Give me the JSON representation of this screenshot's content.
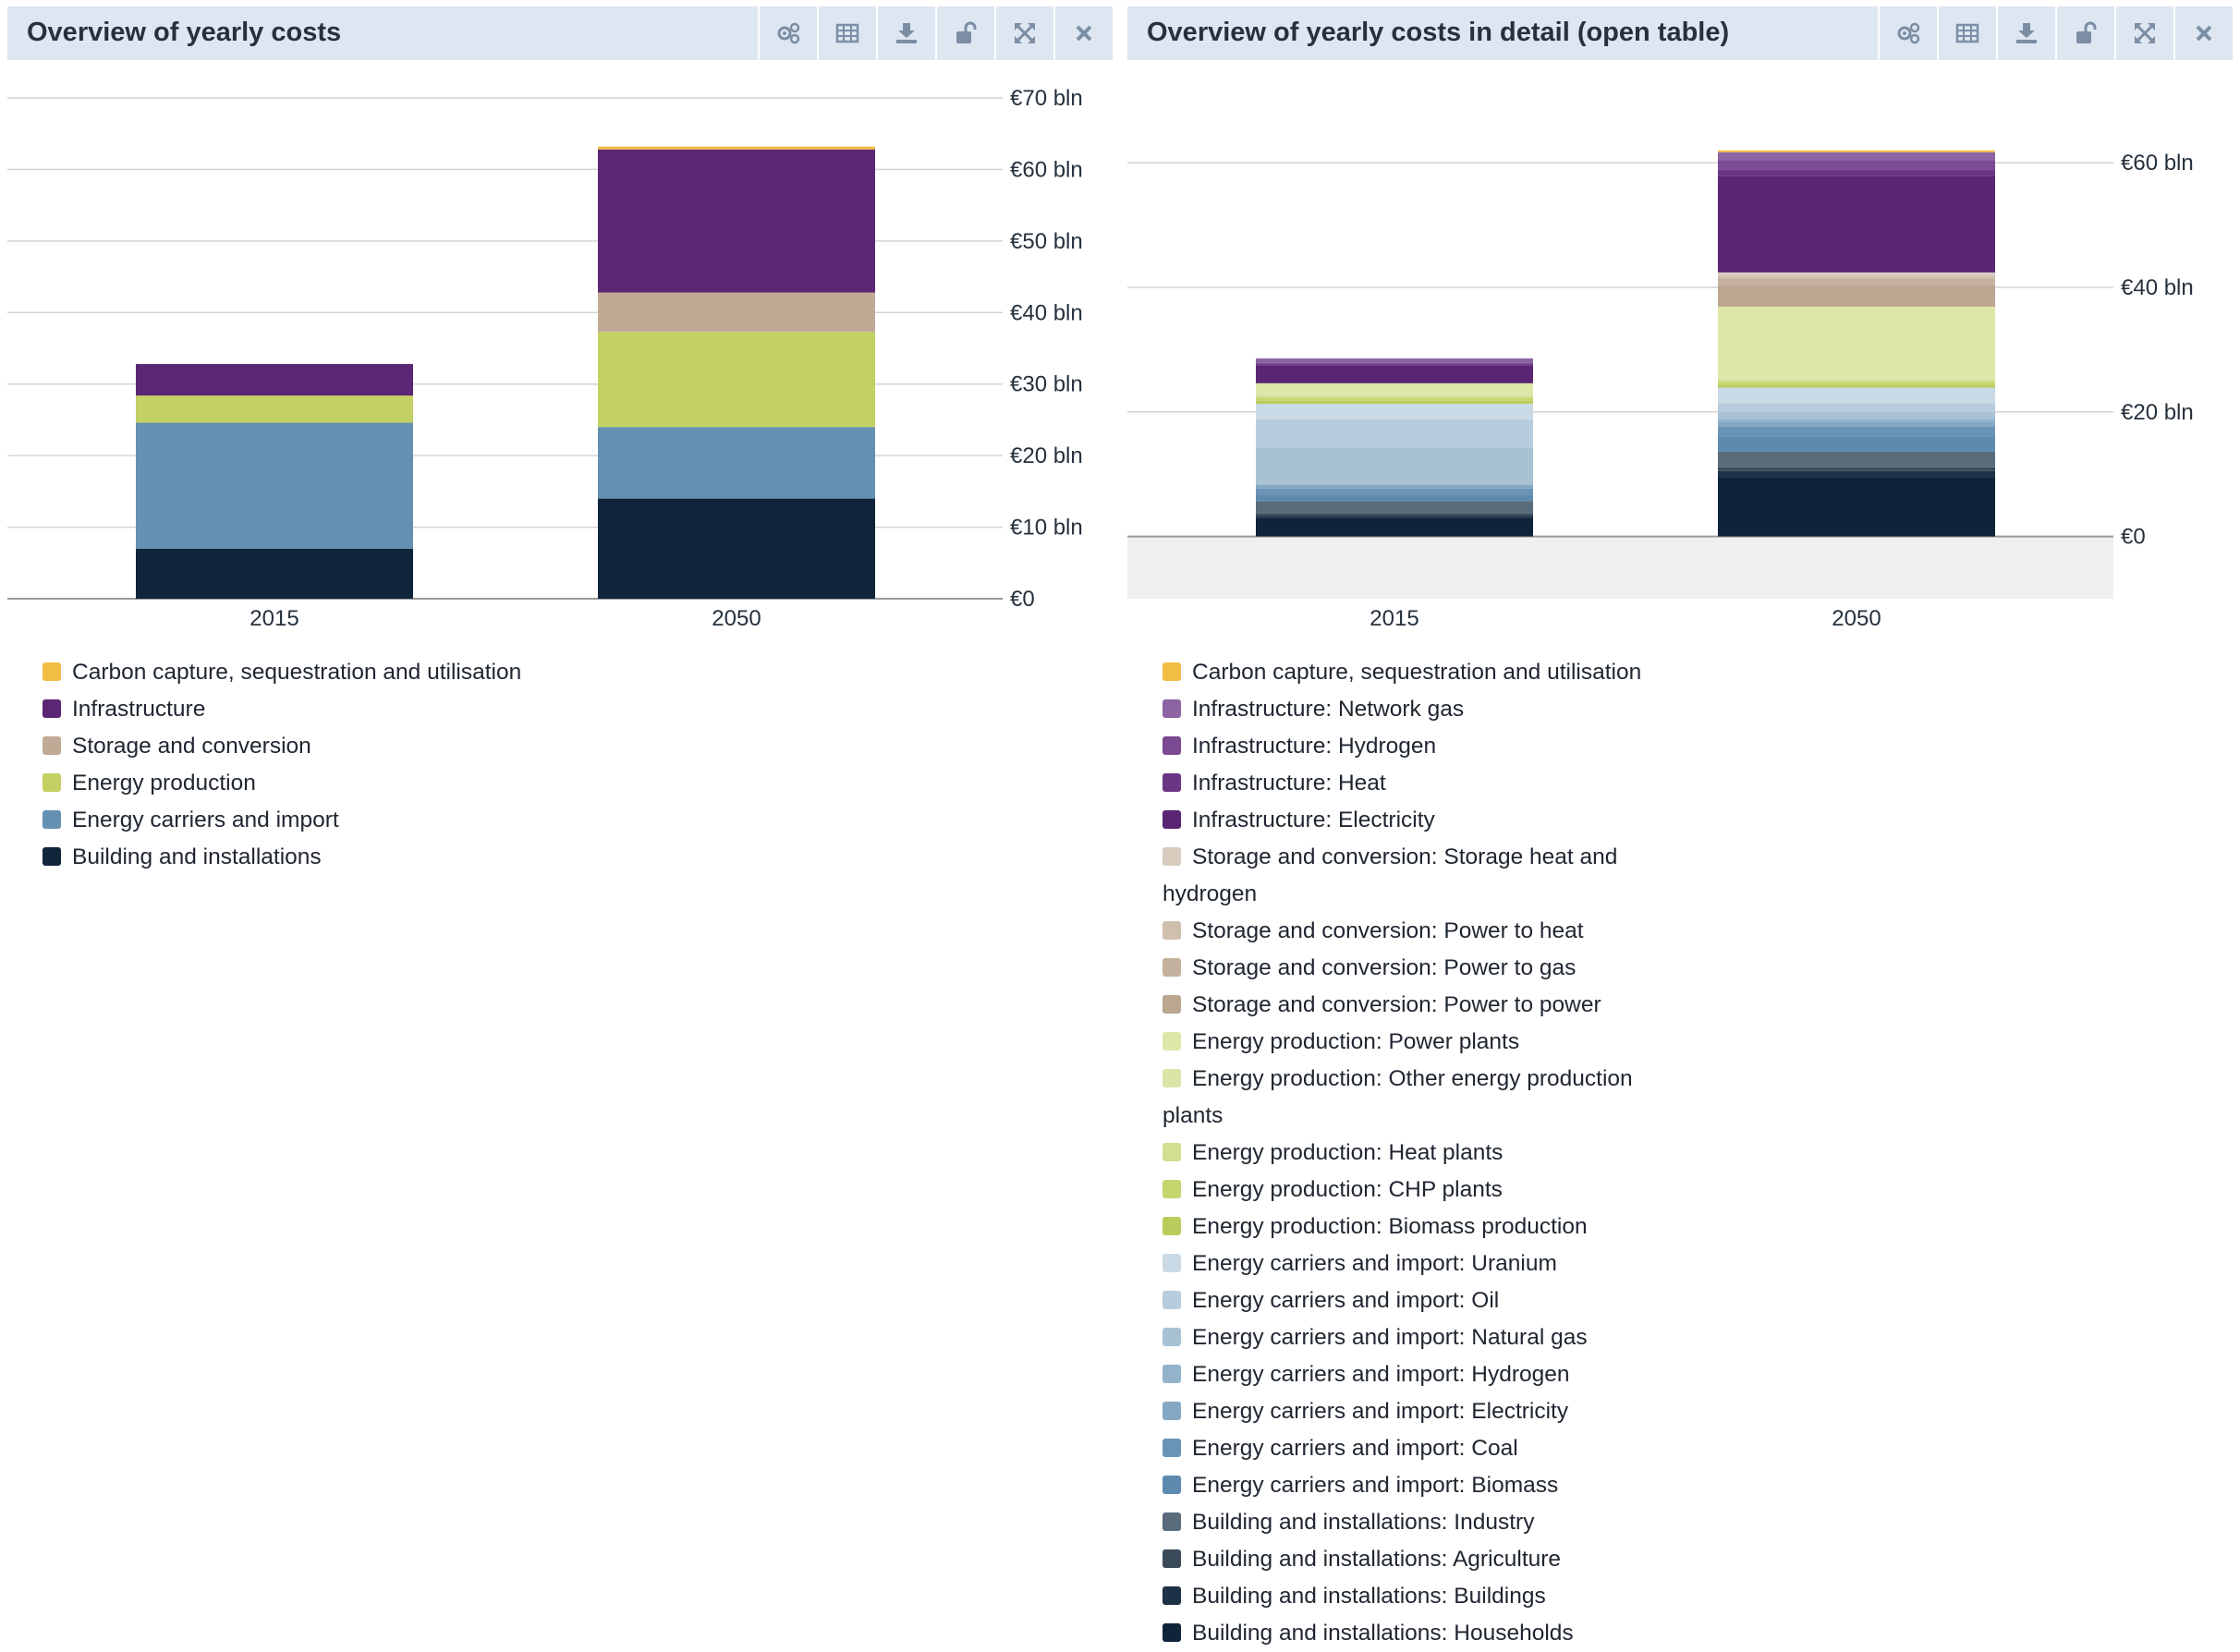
{
  "panels": {
    "left": {
      "title": "Overview of yearly costs"
    },
    "right": {
      "title": "Overview of yearly costs in detail (open table)"
    }
  },
  "toolbar_icons": [
    "settings-gears-icon",
    "table-icon",
    "download-icon",
    "unlock-icon",
    "fullscreen-icon",
    "close-icon"
  ],
  "chart_data": [
    {
      "type": "bar",
      "stacked": true,
      "title": "Overview of yearly costs",
      "categories": [
        "2015",
        "2050"
      ],
      "y_unit": "€ bln",
      "ylim": [
        0,
        70
      ],
      "y_ticks": [
        0,
        10,
        20,
        30,
        40,
        50,
        60,
        70
      ],
      "y_tick_labels": [
        "€0",
        "€10 bln",
        "€20 bln",
        "€30 bln",
        "€40 bln",
        "€50 bln",
        "€60 bln",
        "€70 bln"
      ],
      "y_axis_position": "right",
      "grid": true,
      "legend_position": "bottom",
      "series": [
        {
          "name": "Building and installations",
          "color": "#10243a",
          "values": [
            7,
            14
          ]
        },
        {
          "name": "Energy carriers and import",
          "color": "#6490b1",
          "values": [
            17.6,
            10
          ]
        },
        {
          "name": "Energy production",
          "color": "#c3d062",
          "values": [
            3.8,
            13.3
          ]
        },
        {
          "name": "Storage and conversion",
          "color": "#bfab95",
          "values": [
            0,
            5.5
          ]
        },
        {
          "name": "Infrastructure",
          "color": "#5b2674",
          "values": [
            4.4,
            20
          ]
        },
        {
          "name": "Carbon capture, sequestration and utilisation",
          "color": "#f1bd44",
          "values": [
            0,
            0.4
          ]
        }
      ],
      "legend_order": [
        "Carbon capture, sequestration and utilisation",
        "Infrastructure",
        "Storage and conversion",
        "Energy production",
        "Energy carriers and import",
        "Building and installations"
      ]
    },
    {
      "type": "bar",
      "stacked": true,
      "title": "Overview of yearly costs in detail (open table)",
      "categories": [
        "2015",
        "2050"
      ],
      "y_unit": "€ bln",
      "ylim": [
        -10,
        63
      ],
      "y_ticks": [
        0,
        20,
        40,
        60
      ],
      "y_tick_labels": [
        "€0",
        "€20 bln",
        "€40 bln",
        "€60 bln"
      ],
      "y_axis_position": "right",
      "grid": true,
      "legend_position": "bottom",
      "series": [
        {
          "name": "Building and installations: Households",
          "color": "#0f2339",
          "values": [
            3,
            9.5
          ]
        },
        {
          "name": "Building and installations: Buildings",
          "color": "#1d3247",
          "values": [
            0.3,
            1
          ]
        },
        {
          "name": "Building and installations: Agriculture",
          "color": "#3a4a59",
          "values": [
            0.4,
            0.6
          ]
        },
        {
          "name": "Building and installations: Industry",
          "color": "#5a6b7b",
          "values": [
            2,
            2.5
          ]
        },
        {
          "name": "Energy carriers and import: Biomass",
          "color": "#5f8ab0",
          "values": [
            1,
            2.5
          ]
        },
        {
          "name": "Energy carriers and import: Coal",
          "color": "#6a94b6",
          "values": [
            1,
            1.5
          ]
        },
        {
          "name": "Energy carriers and import: Electricity",
          "color": "#84a8c3",
          "values": [
            0.6,
            0.8
          ]
        },
        {
          "name": "Energy carriers and import: Hydrogen",
          "color": "#93b3cb",
          "values": [
            0,
            0.5
          ]
        },
        {
          "name": "Energy carriers and import: Natural gas",
          "color": "#a8c2d4",
          "values": [
            6,
            1
          ]
        },
        {
          "name": "Energy carriers and import: Oil",
          "color": "#b7ccdc",
          "values": [
            4.5,
            1.5
          ]
        },
        {
          "name": "Energy carriers and import: Uranium",
          "color": "#c9d9e5",
          "values": [
            2.5,
            2.5
          ]
        },
        {
          "name": "Energy production: Biomass production",
          "color": "#bccc5c",
          "values": [
            0.5,
            0.5
          ]
        },
        {
          "name": "Energy production: CHP plants",
          "color": "#c6d46e",
          "values": [
            0.5,
            0.4
          ]
        },
        {
          "name": "Energy production: Heat plants",
          "color": "#d3de8f",
          "values": [
            0.3,
            0.3
          ]
        },
        {
          "name": "Energy production: Other energy production plants",
          "color": "#dce5a8",
          "values": [
            0.2,
            0.4
          ]
        },
        {
          "name": "Energy production: Power plants",
          "color": "#dfe7a8",
          "values": [
            1.8,
            11.4
          ]
        },
        {
          "name": "Storage and conversion: Power to power",
          "color": "#bba68f",
          "values": [
            0,
            3.5
          ]
        },
        {
          "name": "Storage and conversion: Power to gas",
          "color": "#c4b29e",
          "values": [
            0,
            1
          ]
        },
        {
          "name": "Storage and conversion: Power to heat",
          "color": "#cfc0ae",
          "values": [
            0,
            0.5
          ]
        },
        {
          "name": "Storage and conversion: Storage heat and hydrogen",
          "color": "#d8ccbe",
          "values": [
            0,
            0.5
          ]
        },
        {
          "name": "Infrastructure: Electricity",
          "color": "#5a2673",
          "values": [
            2.8,
            15.5
          ]
        },
        {
          "name": "Infrastructure: Heat",
          "color": "#6a3684",
          "values": [
            0.4,
            1
          ]
        },
        {
          "name": "Infrastructure: Hydrogen",
          "color": "#7a4a93",
          "values": [
            0,
            1.5
          ]
        },
        {
          "name": "Infrastructure: Network gas",
          "color": "#8c64a3",
          "values": [
            0.8,
            1.3
          ]
        },
        {
          "name": "Carbon capture, sequestration and utilisation",
          "color": "#f1bd44",
          "values": [
            0,
            0.3
          ]
        }
      ],
      "legend_order": [
        "Carbon capture, sequestration and utilisation",
        "Infrastructure: Network gas",
        "Infrastructure: Hydrogen",
        "Infrastructure: Heat",
        "Infrastructure: Electricity",
        "Storage and conversion: Storage heat and hydrogen",
        "Storage and conversion: Power to heat",
        "Storage and conversion: Power to gas",
        "Storage and conversion: Power to power",
        "Energy production: Power plants",
        "Energy production: Other energy production plants",
        "Energy production: Heat plants",
        "Energy production: CHP plants",
        "Energy production: Biomass production",
        "Energy carriers and import: Uranium",
        "Energy carriers and import: Oil",
        "Energy carriers and import: Natural gas",
        "Energy carriers and import: Hydrogen",
        "Energy carriers and import: Electricity",
        "Energy carriers and import: Coal",
        "Energy carriers and import: Biomass",
        "Building and installations: Industry",
        "Building and installations: Agriculture",
        "Building and installations: Buildings",
        "Building and installations: Households"
      ]
    }
  ]
}
